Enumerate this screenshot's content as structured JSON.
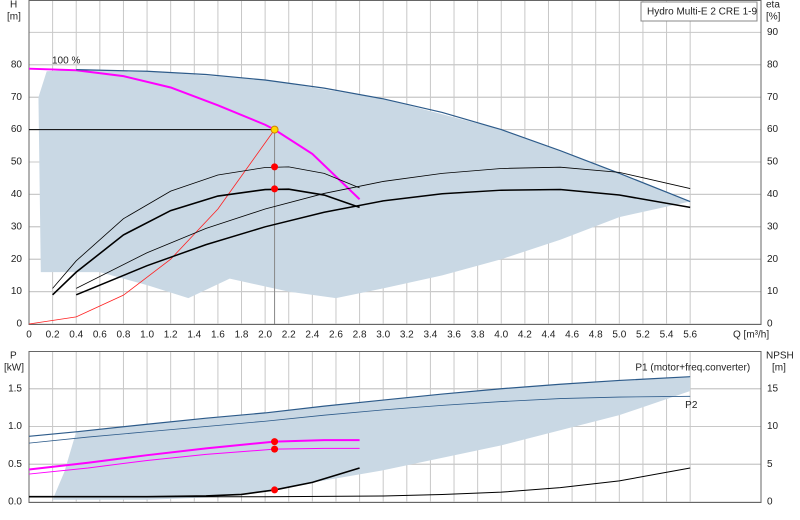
{
  "chart_data": [
    {
      "type": "line",
      "title": "Hydro Multi-E 2 CRE 1-9",
      "y_label": "H",
      "y_unit": "[m]",
      "y2_label": "eta",
      "y2_unit": "[%]",
      "x_label": "Q [m³/h]",
      "xlim": [
        0,
        6.2
      ],
      "ylim": [
        0,
        100
      ],
      "y2lim": [
        0,
        100
      ],
      "grid": true,
      "show_xtick_labels": true,
      "xticks": [
        0,
        0.2,
        0.4,
        0.6,
        0.8,
        {
          "value": 1,
          "label": "1.0"
        },
        1.2,
        1.4,
        1.6,
        1.8,
        {
          "value": 2,
          "label": "2.0"
        },
        2.2,
        2.4,
        2.6,
        2.8,
        {
          "value": 3,
          "label": "3.0"
        },
        3.2,
        3.4,
        3.6,
        3.8,
        {
          "value": 4,
          "label": "4.0"
        },
        4.2,
        4.4,
        4.6,
        4.8,
        {
          "value": 5,
          "label": "5.0"
        },
        5.2,
        5.4,
        5.6
      ],
      "yticks": [
        0,
        10,
        20,
        30,
        40,
        50,
        60,
        70,
        80
      ],
      "y2ticks": [
        0,
        10,
        20,
        30,
        40,
        50,
        60,
        70,
        80,
        90
      ],
      "areas": [
        {
          "color": "#c9d8e4",
          "x": [
            0.1,
            0.08,
            0.15,
            0.4,
            1,
            2,
            3,
            4,
            5,
            5.6,
            5,
            4.5,
            4,
            3.5,
            3,
            2.6,
            2.2,
            1.7,
            1.35,
            1.0,
            0.6,
            0.1
          ],
          "values": [
            16,
            70,
            78,
            78.5,
            78,
            75.3,
            69.5,
            60,
            46.5,
            37.8,
            33,
            26,
            20,
            15,
            11,
            8,
            10,
            14,
            8,
            12,
            16,
            16
          ]
        }
      ],
      "series": [
        {
          "name": "100 %",
          "label_pos": "start-above",
          "color": "#ff00ff",
          "width": 2,
          "x": [
            0,
            0.4,
            0.8,
            1.2,
            1.6,
            2.0,
            2.08,
            2.4,
            2.8
          ],
          "values": [
            78.8,
            78.3,
            76.5,
            73,
            67.5,
            61.5,
            60,
            52.5,
            38.5
          ]
        },
        {
          "color": "#2d5b8a",
          "width": 1.2,
          "x": [
            0.4,
            1,
            1.5,
            2,
            2.5,
            3,
            3.5,
            4,
            4.5,
            5,
            5.6
          ],
          "values": [
            78.5,
            78,
            77,
            75.3,
            72.8,
            69.5,
            65.3,
            60,
            53.5,
            46.5,
            37.8
          ]
        },
        {
          "color": "#ff2020",
          "width": 0.8,
          "x": [
            0,
            0.4,
            0.8,
            1.2,
            1.6,
            2.08
          ],
          "values": [
            0,
            2.2,
            8.9,
            20,
            35.5,
            60
          ]
        },
        {
          "color": "#000000",
          "width": 1,
          "x": [
            0,
            2.08
          ],
          "values": [
            60,
            60
          ]
        },
        {
          "color": "#888888",
          "width": 1,
          "x": [
            2.08,
            2.08
          ],
          "values": [
            60,
            0
          ]
        },
        {
          "color": "#000000",
          "width": 0.8,
          "x": [
            0.2,
            0.4,
            0.8,
            1.2,
            1.6,
            2.0,
            2.2,
            2.5,
            2.8
          ],
          "values": [
            11,
            19.5,
            32.5,
            41,
            46,
            48.3,
            48.5,
            46.5,
            42
          ]
        },
        {
          "color": "#000000",
          "width": 1.6,
          "x": [
            0.2,
            0.4,
            0.8,
            1.2,
            1.6,
            2.0,
            2.2,
            2.5,
            2.8
          ],
          "values": [
            9,
            16,
            27.5,
            35,
            39.5,
            41.5,
            41.6,
            39.8,
            36
          ]
        },
        {
          "color": "#000000",
          "width": 0.8,
          "axis": "y2",
          "x": [
            0.4,
            1,
            1.5,
            2,
            2.5,
            3,
            3.5,
            4,
            4.5,
            5,
            5.6
          ],
          "values": [
            11,
            22,
            29.5,
            35.5,
            40.3,
            44,
            46.5,
            48,
            48.4,
            46.8,
            41.8
          ]
        },
        {
          "color": "#000000",
          "width": 1.5,
          "axis": "y2",
          "x": [
            0.4,
            1,
            1.5,
            2,
            2.5,
            3,
            3.5,
            4,
            4.5,
            5,
            5.6
          ],
          "values": [
            9,
            18,
            24.5,
            30,
            34.5,
            38,
            40.2,
            41.3,
            41.5,
            39.8,
            36
          ]
        }
      ],
      "points": {
        "x": [
          2.08,
          2.08,
          2.08
        ],
        "values": [
          60,
          48.5,
          41.7
        ],
        "colors": [
          "#ffd700",
          "#ff0000",
          "#ff0000"
        ]
      }
    },
    {
      "type": "line",
      "y_label": "P",
      "y_unit": "[kW]",
      "y2_label": "NPSH",
      "y2_unit": "[m]",
      "xlim": [
        0,
        6.2
      ],
      "ylim": [
        0,
        2
      ],
      "y2lim": [
        0,
        20
      ],
      "grid": true,
      "show_xtick_labels": false,
      "xticks": [
        0,
        0.2,
        0.4,
        0.6,
        0.8,
        1,
        1.2,
        1.4,
        1.6,
        1.8,
        2,
        2.2,
        2.4,
        2.6,
        2.8,
        3,
        3.2,
        3.4,
        3.6,
        3.8,
        4,
        4.2,
        4.4,
        4.6,
        4.8,
        5,
        5.2,
        5.4,
        5.6
      ],
      "yticks": [
        {
          "value": 0,
          "label": "0.0"
        },
        {
          "value": 0.5,
          "label": "0.5"
        },
        {
          "value": 1,
          "label": "1.0"
        },
        {
          "value": 1.5,
          "label": "1.5"
        }
      ],
      "y2ticks": [
        0,
        5,
        10,
        15
      ],
      "areas": [
        {
          "color": "#c9d8e4",
          "x": [
            0.2,
            0.3,
            0.4,
            1,
            2,
            3,
            4,
            5,
            5.6,
            5.6,
            5,
            4,
            3,
            2,
            1.5,
            1,
            0.2
          ],
          "values": [
            0.03,
            0.4,
            0.93,
            1.03,
            1.18,
            1.35,
            1.5,
            1.61,
            1.66,
            1.47,
            1.15,
            0.75,
            0.42,
            0.15,
            0.06,
            0.03,
            0.03
          ]
        }
      ],
      "series": [
        {
          "name": "P1 (motor+freq.converter)",
          "label_pos": "end-above",
          "color": "#2d5b8a",
          "width": 1.2,
          "x": [
            0,
            0.4,
            1,
            1.5,
            2,
            2.5,
            3,
            3.5,
            4,
            4.5,
            5,
            5.6
          ],
          "values": [
            0.87,
            0.93,
            1.03,
            1.11,
            1.18,
            1.27,
            1.35,
            1.43,
            1.5,
            1.56,
            1.61,
            1.66
          ]
        },
        {
          "name": "P2",
          "label_pos": "end-below",
          "color": "#2d5b8a",
          "width": 0.8,
          "x": [
            0,
            0.5,
            1,
            1.5,
            2,
            2.5,
            3,
            3.5,
            4,
            4.5,
            5,
            5.6
          ],
          "values": [
            0.78,
            0.86,
            0.93,
            1.0,
            1.07,
            1.15,
            1.22,
            1.28,
            1.33,
            1.37,
            1.39,
            1.4
          ]
        },
        {
          "color": "#ff00ff",
          "width": 2,
          "x": [
            0,
            0.5,
            1,
            1.5,
            2.08,
            2.5,
            2.8
          ],
          "values": [
            0.43,
            0.52,
            0.62,
            0.71,
            0.8,
            0.82,
            0.82
          ]
        },
        {
          "color": "#ff00ff",
          "width": 1,
          "x": [
            0,
            0.5,
            1,
            1.5,
            2.08,
            2.5,
            2.8
          ],
          "values": [
            0.37,
            0.45,
            0.55,
            0.63,
            0.7,
            0.71,
            0.71
          ]
        },
        {
          "color": "#000000",
          "width": 1.6,
          "x": [
            0,
            1,
            1.5,
            1.8,
            2.08,
            2.4,
            2.8
          ],
          "values": [
            0.07,
            0.07,
            0.08,
            0.1,
            0.16,
            0.26,
            0.45
          ]
        },
        {
          "color": "#000000",
          "width": 1,
          "x": [
            0,
            2,
            3,
            3.5,
            4,
            4.5,
            5,
            5.6
          ],
          "values": [
            0.07,
            0.07,
            0.08,
            0.1,
            0.13,
            0.19,
            0.28,
            0.45
          ]
        }
      ],
      "points": {
        "x": [
          2.08,
          2.08,
          2.08
        ],
        "values": [
          0.8,
          0.7,
          0.16
        ],
        "colors": [
          "#ff0000",
          "#ff0000",
          "#ff0000"
        ]
      }
    }
  ]
}
